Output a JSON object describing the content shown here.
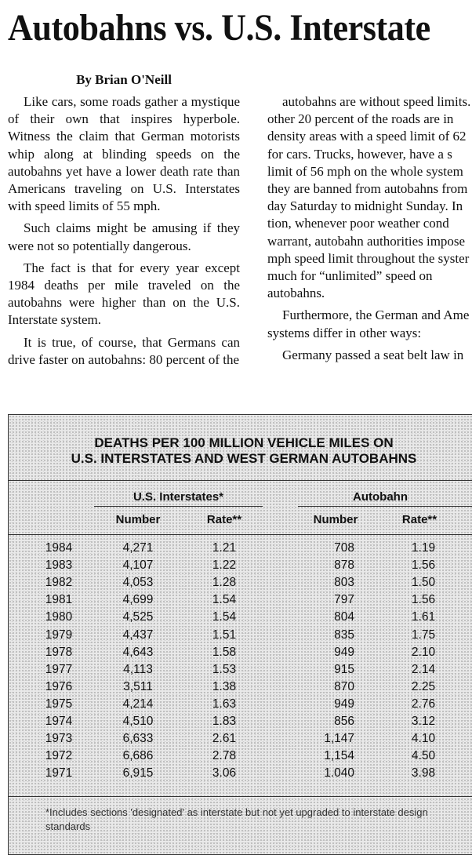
{
  "article": {
    "title": "Autobahns vs. U.S. Interstate",
    "byline": "By Brian O'Neill",
    "left_column": [
      "Like cars, some roads gather a mystique of their own that inspires hyperbole. Witness the claim that German motorists whip along at blinding speeds on the autobahns yet have a lower death rate than Americans traveling on U.S. Interstates with speed limits of 55 mph.",
      "Such claims might be amusing if they were not so potentially dangerous.",
      "The fact is that for every year except 1984 deaths per mile traveled on the autobahns were higher than on the U.S. Interstate system.",
      "It is true, of course, that Germans can drive faster on autobahns: 80 percent of the"
    ],
    "right_column": [
      [
        "autobahns are without speed limits.",
        "other 20 percent of the roads are in",
        "density areas with a speed limit of 62",
        "for cars. Trucks, however, have a s",
        "limit of 56 mph on the whole system",
        "they are banned from autobahns from",
        "day Saturday to midnight Sunday. In",
        "tion, whenever poor weather cond",
        "warrant, autobahn authorities impose",
        "mph speed limit throughout the syster",
        "much for “unlimited” speed on",
        "autobahns."
      ],
      [
        "Furthermore, the German and Ame",
        "systems differ in other ways:"
      ],
      [
        "Germany passed a seat belt law in"
      ]
    ]
  },
  "table": {
    "title": [
      "DEATHS PER 100 MILLION VEHICLE MILES ON",
      "U.S. INTERSTATES AND WEST GERMAN AUTOBAHNS"
    ],
    "groups": [
      "U.S. Interstates*",
      "Autobahn"
    ],
    "columns": [
      "Number",
      "Rate**",
      "Number",
      "Rate**"
    ],
    "rows": [
      [
        "1984",
        "4,271",
        "1.21",
        "708",
        "1.19"
      ],
      [
        "1983",
        "4,107",
        "1.22",
        "878",
        "1.56"
      ],
      [
        "1982",
        "4,053",
        "1.28",
        "803",
        "1.50"
      ],
      [
        "1981",
        "4,699",
        "1.54",
        "797",
        "1.56"
      ],
      [
        "1980",
        "4,525",
        "1.54",
        "804",
        "1.61"
      ],
      [
        "1979",
        "4,437",
        "1.51",
        "835",
        "1.75"
      ],
      [
        "1978",
        "4,643",
        "1.58",
        "949",
        "2.10"
      ],
      [
        "1977",
        "4,113",
        "1.53",
        "915",
        "2.14"
      ],
      [
        "1976",
        "3,511",
        "1.38",
        "870",
        "2.25"
      ],
      [
        "1975",
        "4,214",
        "1.63",
        "949",
        "2.76"
      ],
      [
        "1974",
        "4,510",
        "1.83",
        "856",
        "3.12"
      ],
      [
        "1973",
        "6,633",
        "2.61",
        "1,147",
        "4.10"
      ],
      [
        "1972",
        "6,686",
        "2.78",
        "1,154",
        "4.50"
      ],
      [
        "1971",
        "6,915",
        "3.06",
        "1.040",
        "3.98"
      ]
    ],
    "footnote": "*Includes sections 'designated' as interstate but not yet upgraded to interstate design standards"
  }
}
